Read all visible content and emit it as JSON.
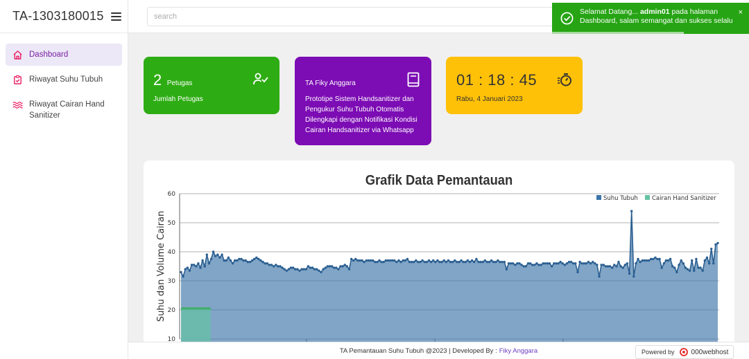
{
  "brand": {
    "title": "TA-1303180015"
  },
  "search": {
    "placeholder": "search"
  },
  "sidebar": {
    "items": [
      {
        "label": "Dashboard",
        "icon": "home-icon"
      },
      {
        "label": "Riwayat Suhu Tubuh",
        "icon": "clipboard-check-icon"
      },
      {
        "label": "Riwayat Cairan Hand Sanitizer",
        "icon": "waves-icon"
      }
    ]
  },
  "cards": {
    "petugas": {
      "count": "2",
      "count_label": "Petugas",
      "caption": "Jumlah Petugas",
      "icon": "user-check-icon"
    },
    "project": {
      "title": "TA Fiky Anggara",
      "description": "Prototipe Sistem Handsanitizer dan Pengukur Suhu Tubuh Otomatis Dilengkapi dengan Notifikasi Kondisi Cairan Handsanitizer via Whatsapp",
      "icon": "book-icon"
    },
    "clock": {
      "time": "01 : 18 : 45",
      "date": "Rabu, 4 Januari 2023",
      "icon": "stopwatch-icon"
    }
  },
  "toast": {
    "prefix": "Selamat Datang... ",
    "user": "admin01",
    "suffix": " pada halaman Dashboard, salam semangat dan sukses selalu",
    "close": "×"
  },
  "footer": {
    "text": "TA Pemantauan Suhu Tubuh @2023 | Developed By :",
    "link": "Fiky Anggara"
  },
  "powered": {
    "label": "Powered by",
    "brand": "000webhost"
  },
  "colors": {
    "green": "#2eac14",
    "purple": "#7c0cb4",
    "yellow": "#ffc107",
    "accent": "#7b1fa2",
    "suhu": "#3d75a8",
    "cairan": "#66c2a5"
  },
  "chart_data": {
    "type": "area",
    "title": "Grafik Data Pemantauan",
    "ylabel": "Suhu dan Volume Cairan",
    "ylim": [
      10,
      60
    ],
    "yticks": [
      10,
      20,
      30,
      40,
      50,
      60
    ],
    "grid": true,
    "legend_position": "top-right",
    "series": [
      {
        "name": "Suhu Tubuh",
        "color": "#3d75a8",
        "values": [
          33,
          31.5,
          34,
          34.5,
          33.5,
          35.5,
          35.5,
          35,
          36,
          34.5,
          37,
          35,
          39,
          36,
          37.5,
          40,
          38.5,
          39,
          38,
          39,
          37,
          37,
          38,
          37,
          36,
          37,
          37,
          37.5,
          37.5,
          37,
          37,
          36.5,
          36.5,
          37,
          37.5,
          38,
          37.5,
          37,
          36.5,
          36,
          36,
          35.5,
          35.5,
          35,
          35.5,
          35,
          35,
          34.5,
          34,
          33.5,
          34,
          34.5,
          34.5,
          34,
          34,
          33.5,
          34,
          34,
          34,
          35,
          34.5,
          34.5,
          34,
          34,
          33.5,
          33,
          34,
          34.5,
          35,
          35,
          35,
          34.5,
          34.5,
          34,
          35,
          35,
          35.5,
          35,
          34,
          37.5,
          37,
          37.5,
          37,
          37,
          37,
          36.5,
          37,
          37,
          37,
          37,
          36.5,
          36.5,
          37,
          36.5,
          36.5,
          37,
          37,
          37,
          37,
          37,
          36.5,
          37,
          36.5,
          37,
          37,
          37.5,
          36.5,
          36.5,
          36.5,
          37,
          36.5,
          36.5,
          37,
          36.5,
          36.5,
          37,
          36.5,
          37,
          36.5,
          37,
          36.5,
          36.5,
          37,
          36.5,
          37,
          36.5,
          36.5,
          37,
          36.5,
          36.5,
          37,
          36.5,
          36.5,
          37,
          36.5,
          37,
          36.5,
          37.5,
          36.5,
          36.5,
          36.5,
          37,
          36.5,
          36.5,
          37,
          36.5,
          36.5,
          37,
          36.5,
          36.5,
          36.5,
          34,
          36,
          36,
          36,
          35.5,
          36,
          36,
          35.5,
          35,
          35,
          36,
          36,
          35.5,
          35.5,
          36,
          35.5,
          35.5,
          36,
          36,
          36,
          36,
          35,
          36,
          36,
          36,
          36.5,
          36,
          35.5,
          36,
          36.5,
          36.5,
          36,
          36,
          33,
          36.5,
          36,
          36,
          36,
          36.5,
          36,
          36.5,
          36,
          35.5,
          31.5,
          35.5,
          35.5,
          35,
          35,
          35,
          34.5,
          35.5,
          35,
          36.5,
          35,
          34.5,
          35.5,
          36,
          32.5,
          54,
          31.5,
          36,
          37.5,
          36.5,
          37,
          37,
          37,
          37,
          37.5,
          37.5,
          38,
          37.5,
          37.5,
          34.5,
          36,
          37,
          37,
          37.5,
          35,
          34.5,
          33,
          35.5,
          37,
          36,
          34.5,
          34,
          33.5,
          37,
          33.5,
          37.5,
          34.5,
          34.5,
          33.5,
          37,
          38,
          36,
          41,
          36,
          42.5,
          43
        ]
      },
      {
        "name": "Cairan Hand Sanitizer",
        "color": "#66c2a5",
        "values": [
          20.5,
          20.5,
          20.5,
          20.5,
          20.5,
          20.5,
          20.5,
          20.5,
          20.5,
          20.5,
          20.5,
          20.5,
          20.5,
          20.5,
          20.5
        ]
      }
    ]
  }
}
